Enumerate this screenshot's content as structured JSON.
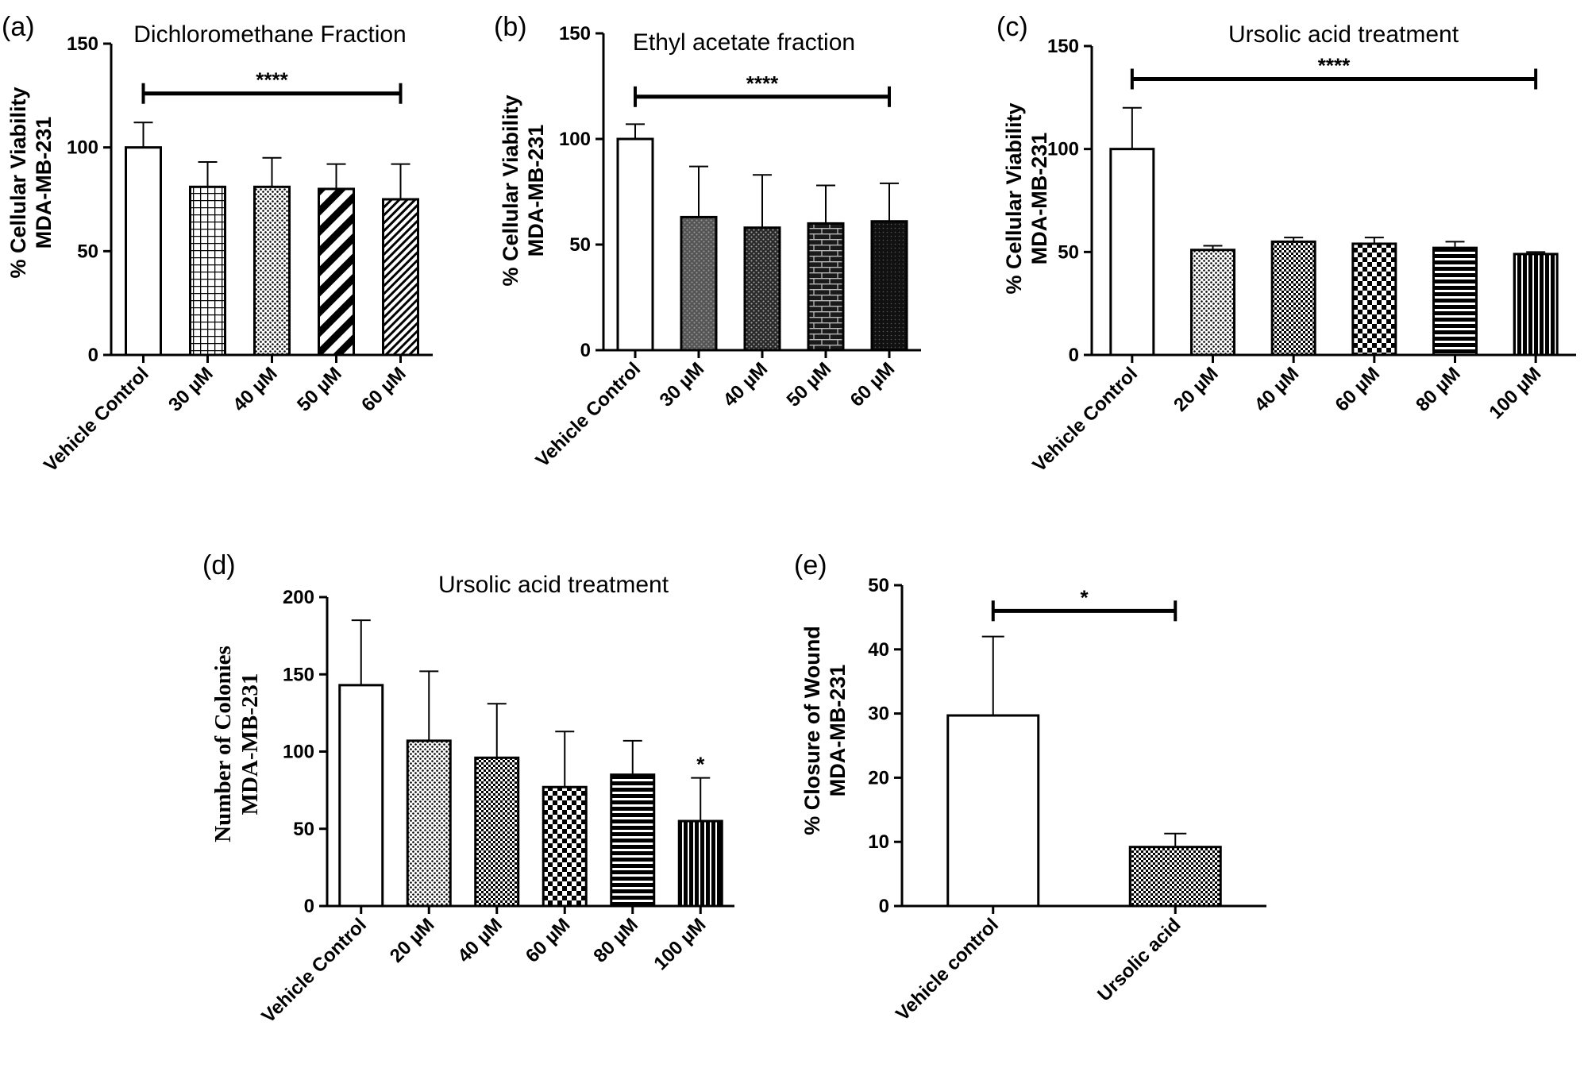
{
  "chart_data": [
    {
      "panel": "(a)",
      "type": "bar",
      "title": "Dichloromethane Fraction",
      "ylabel": [
        "% Cellular Viability",
        "MDA-MB-231"
      ],
      "categories": [
        "Vehicle Control",
        "30 µM",
        "40 µM",
        "50 µM",
        "60 µM"
      ],
      "values": [
        100,
        81,
        81,
        80,
        75
      ],
      "errors": [
        12,
        12,
        14,
        12,
        17
      ],
      "patterns": [
        "none",
        "grid",
        "dots",
        "diag",
        "diagfine"
      ],
      "ylim": [
        0,
        150
      ],
      "yticks": [
        0,
        50,
        100,
        150
      ],
      "significance": [
        {
          "label": "****",
          "from": 0,
          "to": 4,
          "y": 126
        }
      ]
    },
    {
      "panel": "(b)",
      "type": "bar",
      "title": "Ethyl acetate fraction",
      "ylabel": [
        "% Cellular Viability",
        "MDA-MB-231"
      ],
      "categories": [
        "Vehicle Control",
        "30 µM",
        "40 µM",
        "50 µM",
        "60 µM"
      ],
      "values": [
        100,
        63,
        58,
        60,
        61
      ],
      "errors": [
        7,
        24,
        25,
        18,
        18
      ],
      "patterns": [
        "none",
        "dotsgray",
        "dotsdark",
        "brick",
        "dark"
      ],
      "ylim": [
        0,
        150
      ],
      "yticks": [
        0,
        50,
        100,
        150
      ],
      "significance": [
        {
          "label": "****",
          "from": 0,
          "to": 4,
          "y": 120
        }
      ]
    },
    {
      "panel": "(c)",
      "type": "bar",
      "title": "Ursolic acid treatment",
      "ylabel": [
        "% Cellular Viability",
        "MDA-MB-231"
      ],
      "categories": [
        "Vehicle Control",
        "20 µM",
        "40 µM",
        "60 µM",
        "80 µM",
        "100 µM"
      ],
      "values": [
        100,
        51,
        55,
        54,
        52,
        49
      ],
      "errors": [
        20,
        2,
        2,
        3,
        3,
        1
      ],
      "patterns": [
        "none",
        "dots",
        "check",
        "check2",
        "hlines",
        "vlines"
      ],
      "ylim": [
        0,
        150
      ],
      "yticks": [
        0,
        50,
        100,
        150
      ],
      "significance": [
        {
          "label": "****",
          "from": 0,
          "to": 5,
          "y": 134
        }
      ]
    },
    {
      "panel": "(d)",
      "type": "bar",
      "title": "Ursolic acid treatment",
      "ylabel": [
        "Number of Colonies",
        "MDA-MB-231"
      ],
      "categories": [
        "Vehicle Control",
        "20 µM",
        "40 µM",
        "60 µM",
        "80 µM",
        "100 µM"
      ],
      "values": [
        143,
        107,
        96,
        77,
        85,
        55
      ],
      "errors": [
        42,
        45,
        35,
        36,
        22,
        28
      ],
      "patterns": [
        "none",
        "dots",
        "check",
        "check2",
        "hlines",
        "vlines"
      ],
      "ylim": [
        0,
        200
      ],
      "yticks": [
        0,
        50,
        100,
        150,
        200
      ],
      "point_markers": [
        {
          "label": "*",
          "index": 5
        }
      ]
    },
    {
      "panel": "(e)",
      "type": "bar",
      "title": "",
      "ylabel": [
        "% Closure of Wound",
        "MDA-MB-231"
      ],
      "categories": [
        "Vehicle control",
        "Ursolic acid"
      ],
      "values": [
        29.7,
        9.2
      ],
      "errors": [
        12.3,
        2.1
      ],
      "patterns": [
        "none",
        "check"
      ],
      "ylim": [
        0,
        50
      ],
      "yticks": [
        0,
        10,
        20,
        30,
        40,
        50
      ],
      "significance": [
        {
          "label": "*",
          "from": 0,
          "to": 1,
          "y": 46
        }
      ]
    }
  ]
}
